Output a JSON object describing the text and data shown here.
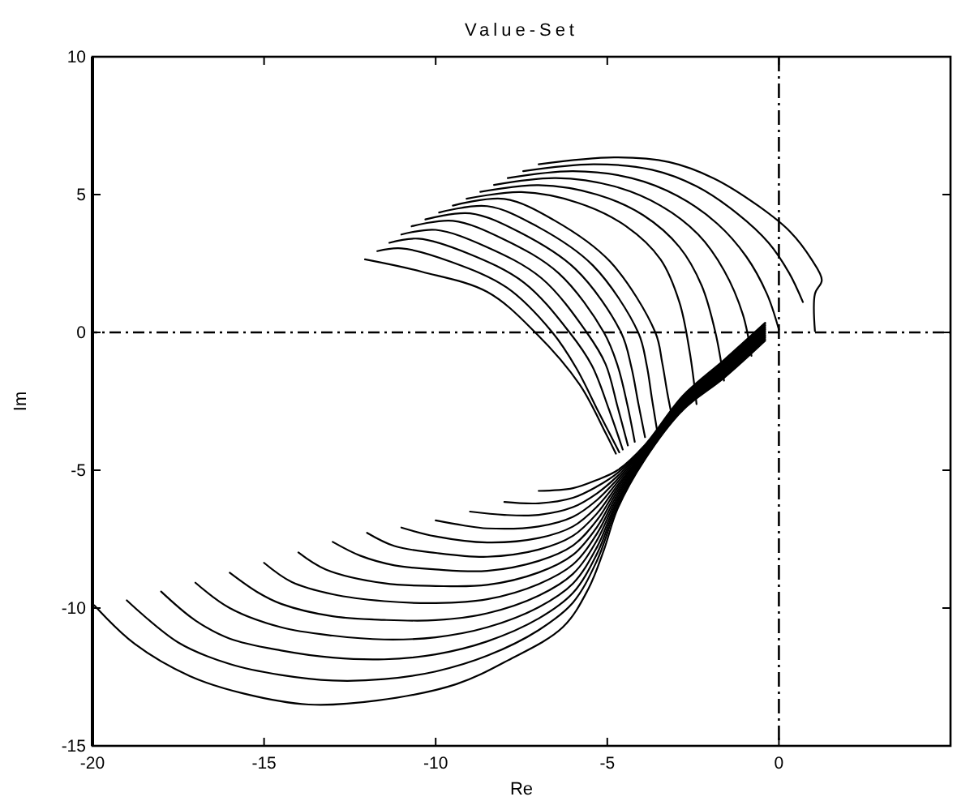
{
  "chart_data": {
    "type": "line",
    "title": "Value-Set",
    "xlabel": "Re",
    "ylabel": "Im",
    "xlim": [
      -20,
      5
    ],
    "ylim": [
      -15,
      10
    ],
    "xticks": [
      -20,
      -15,
      -10,
      -5,
      0,
      {
        "value": 5,
        "label": null
      }
    ],
    "yticks": [
      -15,
      -10,
      -5,
      0,
      5,
      10
    ],
    "ref_lines": [
      {
        "axis": "x",
        "value": 0
      },
      {
        "axis": "y",
        "value": 0
      }
    ],
    "series": [
      {
        "color": "#000000",
        "x": [
          -12.06,
          -10.4,
          -8.5,
          -7.1,
          -5.8,
          -5.05,
          -4.75
        ],
        "values": [
          2.65,
          2.2,
          1.47,
          0,
          -1.9,
          -3.65,
          -4.4
        ]
      },
      {
        "color": "#000000",
        "x": [
          -11.7,
          -11.0,
          -9.55,
          -7.92,
          -6.6,
          -5.9,
          -5.25,
          -4.65
        ],
        "values": [
          2.95,
          3.05,
          2.56,
          1.62,
          0,
          -1.3,
          -2.9,
          -4.35
        ]
      },
      {
        "color": "#000000",
        "x": [
          -11.35,
          -10.5,
          -9.05,
          -7.42,
          -6.1,
          -5.45,
          -4.95,
          -4.55
        ],
        "values": [
          3.25,
          3.4,
          2.86,
          1.8,
          0,
          -1.2,
          -2.8,
          -4.25
        ]
      },
      {
        "color": "#000000",
        "x": [
          -11.0,
          -10.0,
          -8.55,
          -6.92,
          -5.6,
          -5.05,
          -4.7,
          -4.4
        ],
        "values": [
          3.55,
          3.72,
          3.12,
          1.97,
          0,
          -1.15,
          -2.7,
          -4.1
        ]
      },
      {
        "color": "#000000",
        "x": [
          -10.7,
          -9.5,
          -8.05,
          -6.42,
          -5.1,
          -4.7,
          -4.42,
          -4.2
        ],
        "values": [
          3.85,
          4.05,
          3.4,
          2.15,
          0,
          -1.2,
          -2.6,
          -3.97
        ]
      },
      {
        "color": "#000000",
        "x": [
          -10.3,
          -9.0,
          -7.55,
          -5.92,
          -4.6,
          -4.3,
          -4.1,
          -3.9
        ],
        "values": [
          4.1,
          4.32,
          3.63,
          2.29,
          0,
          -1.25,
          -2.55,
          -3.8
        ]
      },
      {
        "color": "#000000",
        "x": [
          -9.9,
          -8.5,
          -7.05,
          -5.42,
          -4.1,
          -3.85,
          -3.7,
          -3.55
        ],
        "values": [
          4.35,
          4.58,
          3.85,
          2.43,
          0,
          -1.2,
          -2.4,
          -3.55
        ]
      },
      {
        "color": "#000000",
        "x": [
          -9.5,
          -8.0,
          -6.55,
          -4.92,
          -3.6,
          -3.4,
          -3.25,
          -3.1
        ],
        "values": [
          4.6,
          4.84,
          4.07,
          2.57,
          0,
          -1.1,
          -2.2,
          -3.15
        ]
      },
      {
        "color": "#000000",
        "x": [
          -9.1,
          -7.5,
          -5.85,
          -4.45,
          -3.45,
          -2.9,
          -2.6,
          -2.4
        ],
        "values": [
          4.85,
          5.09,
          4.7,
          3.85,
          2.65,
          1.1,
          -0.7,
          -2.6
        ]
      },
      {
        "color": "#000000",
        "x": [
          -8.7,
          -7.0,
          -5.3,
          -3.95,
          -2.9,
          -2.25,
          -1.85,
          -1.6
        ],
        "values": [
          5.1,
          5.34,
          5.0,
          4.25,
          3.1,
          1.7,
          0.0,
          -1.75
        ]
      },
      {
        "color": "#000000",
        "x": [
          -8.3,
          -6.5,
          -4.8,
          -3.45,
          -2.35,
          -1.6,
          -1.05,
          -0.8
        ],
        "values": [
          5.35,
          5.6,
          5.3,
          4.6,
          3.55,
          2.25,
          0.65,
          -0.85
        ]
      },
      {
        "color": "#000000",
        "x": [
          -7.9,
          -6.0,
          -4.3,
          -2.95,
          -1.8,
          -0.95,
          -0.35,
          0.0
        ],
        "values": [
          5.6,
          5.85,
          5.6,
          4.95,
          3.95,
          2.75,
          1.4,
          0.1
        ]
      },
      {
        "color": "#000000",
        "x": [
          -7.45,
          -5.4,
          -3.7,
          -2.4,
          -1.2,
          -0.3,
          0.3,
          0.7
        ],
        "values": [
          5.85,
          6.1,
          5.9,
          5.3,
          4.3,
          3.25,
          2.15,
          1.1
        ]
      },
      {
        "color": "#000000",
        "x": [
          -7.0,
          -4.8,
          -3.2,
          -1.9,
          -0.6,
          0.33,
          0.95,
          1.25,
          1.05,
          1.05
        ],
        "values": [
          6.1,
          6.35,
          6.18,
          5.59,
          4.59,
          3.65,
          2.65,
          1.9,
          1.4,
          0.05
        ]
      },
      {
        "color": "#000000",
        "x": [
          -19.95,
          -18.77,
          -17.16,
          -15.6,
          -13.7,
          -11.68,
          -9.4,
          -7.9,
          -6.3,
          -5.55,
          -5.1,
          -4.7,
          -3.9,
          -2.8,
          -1.6,
          -0.4
        ],
        "values": [
          -9.9,
          -11.3,
          -12.47,
          -13.1,
          -13.5,
          -13.35,
          -12.76,
          -11.9,
          -10.7,
          -9.3,
          -7.9,
          -6.4,
          -4.6,
          -2.82,
          -1.65,
          -0.3
        ]
      },
      {
        "color": "#000000",
        "x": [
          -19.0,
          -17.5,
          -16.0,
          -14.5,
          -13.0,
          -11.5,
          -10.0,
          -8.5,
          -7.0,
          -6.0,
          -5.3,
          -4.7,
          -3.9,
          -2.8,
          -1.6,
          -0.4
        ],
        "values": [
          -9.72,
          -11.25,
          -12.03,
          -12.43,
          -12.63,
          -12.58,
          -12.3,
          -11.73,
          -10.8,
          -9.8,
          -8.28,
          -6.29,
          -4.56,
          -2.78,
          -1.6,
          -0.25
        ]
      },
      {
        "color": "#000000",
        "x": [
          -18.0,
          -17.0,
          -16.0,
          -14.5,
          -13.0,
          -11.5,
          -10.0,
          -8.5,
          -7.0,
          -6.0,
          -5.3,
          -4.7,
          -3.9,
          -2.8,
          -1.6,
          -0.4
        ],
        "values": [
          -9.4,
          -10.45,
          -11.11,
          -11.54,
          -11.8,
          -11.86,
          -11.68,
          -11.21,
          -10.38,
          -9.45,
          -8.03,
          -6.18,
          -4.52,
          -2.74,
          -1.55,
          -0.2
        ]
      },
      {
        "color": "#000000",
        "x": [
          -17.0,
          -16.0,
          -14.5,
          -13.0,
          -11.5,
          -10.0,
          -8.5,
          -7.0,
          -6.0,
          -5.3,
          -4.7,
          -3.9,
          -2.8,
          -1.6,
          -0.4
        ],
        "values": [
          -9.08,
          -10.0,
          -10.7,
          -11.0,
          -11.14,
          -11.06,
          -10.7,
          -9.97,
          -9.11,
          -7.79,
          -6.08,
          -4.48,
          -2.7,
          -1.5,
          -0.15
        ]
      },
      {
        "color": "#000000",
        "x": [
          -16.0,
          -15.2,
          -14.5,
          -13.0,
          -11.5,
          -10.0,
          -8.5,
          -7.0,
          -6.0,
          -5.3,
          -4.7,
          -3.9,
          -2.8,
          -1.6,
          -0.4
        ],
        "values": [
          -8.72,
          -9.42,
          -9.85,
          -10.3,
          -10.43,
          -10.44,
          -10.19,
          -9.55,
          -8.76,
          -7.54,
          -5.97,
          -4.44,
          -2.66,
          -1.45,
          -0.1
        ]
      },
      {
        "color": "#000000",
        "x": [
          -15.0,
          -14.2,
          -13.0,
          -11.5,
          -10.0,
          -8.5,
          -7.0,
          -6.0,
          -5.3,
          -4.7,
          -3.9,
          -2.8,
          -1.6,
          -0.4
        ],
        "values": [
          -8.36,
          -9.05,
          -9.5,
          -9.75,
          -9.82,
          -9.68,
          -9.13,
          -8.42,
          -7.3,
          -5.86,
          -4.4,
          -2.62,
          -1.4,
          -0.05
        ]
      },
      {
        "color": "#000000",
        "x": [
          -14.0,
          -13.2,
          -11.5,
          -10.0,
          -8.5,
          -7.0,
          -6.0,
          -5.3,
          -4.7,
          -3.9,
          -2.8,
          -1.6,
          -0.4
        ],
        "values": [
          -7.98,
          -8.6,
          -9.1,
          -9.2,
          -9.16,
          -8.71,
          -8.07,
          -7.06,
          -5.75,
          -4.36,
          -2.58,
          -1.35,
          0.0
        ]
      },
      {
        "color": "#000000",
        "x": [
          -13.0,
          -12.2,
          -11.2,
          -10.0,
          -8.5,
          -7.0,
          -6.0,
          -5.3,
          -4.7,
          -3.9,
          -2.8,
          -1.6,
          -0.4
        ],
        "values": [
          -7.6,
          -8.1,
          -8.45,
          -8.6,
          -8.65,
          -8.29,
          -7.73,
          -6.81,
          -5.64,
          -4.32,
          -2.54,
          -1.3,
          0.05
        ]
      },
      {
        "color": "#000000",
        "x": [
          -12.0,
          -11.2,
          -10.0,
          -8.5,
          -7.0,
          -6.0,
          -5.3,
          -4.7,
          -3.9,
          -2.8,
          -1.6,
          -0.4
        ],
        "values": [
          -7.27,
          -7.75,
          -8.0,
          -8.14,
          -7.88,
          -7.38,
          -6.57,
          -5.54,
          -4.28,
          -2.5,
          -1.25,
          0.1
        ]
      },
      {
        "color": "#000000",
        "x": [
          -11.0,
          -10.0,
          -8.5,
          -7.0,
          -6.0,
          -5.3,
          -4.7,
          -3.9,
          -2.8,
          -1.6,
          -0.4
        ],
        "values": [
          -7.08,
          -7.4,
          -7.62,
          -7.46,
          -7.04,
          -6.32,
          -5.43,
          -4.24,
          -2.46,
          -1.2,
          0.15
        ]
      },
      {
        "color": "#000000",
        "x": [
          -10.0,
          -9.2,
          -8.5,
          -7.0,
          -6.0,
          -5.3,
          -4.7,
          -3.9,
          -2.8,
          -1.6,
          -0.4
        ],
        "values": [
          -6.82,
          -7.0,
          -7.11,
          -7.04,
          -6.69,
          -6.08,
          -5.32,
          -4.2,
          -2.42,
          -1.15,
          0.2
        ]
      },
      {
        "color": "#000000",
        "x": [
          -9.0,
          -8.0,
          -7.0,
          -6.0,
          -5.3,
          -4.7,
          -3.9,
          -2.8,
          -1.6,
          -0.4
        ],
        "values": [
          -6.5,
          -6.62,
          -6.62,
          -6.34,
          -5.84,
          -5.21,
          -4.16,
          -2.38,
          -1.1,
          0.25
        ]
      },
      {
        "color": "#000000",
        "x": [
          -8.0,
          -7.0,
          -6.0,
          -5.3,
          -4.7,
          -3.9,
          -2.8,
          -1.6,
          -0.4
        ],
        "values": [
          -6.15,
          -6.2,
          -6.0,
          -5.59,
          -5.1,
          -4.12,
          -2.34,
          -1.05,
          0.3
        ]
      },
      {
        "color": "#000000",
        "x": [
          -7.0,
          -6.0,
          -5.3,
          -4.7,
          -3.9,
          -2.8,
          -1.6,
          -0.4
        ],
        "values": [
          -5.75,
          -5.65,
          -5.35,
          -5.0,
          -4.08,
          -2.3,
          -1.0,
          0.35
        ]
      }
    ]
  }
}
